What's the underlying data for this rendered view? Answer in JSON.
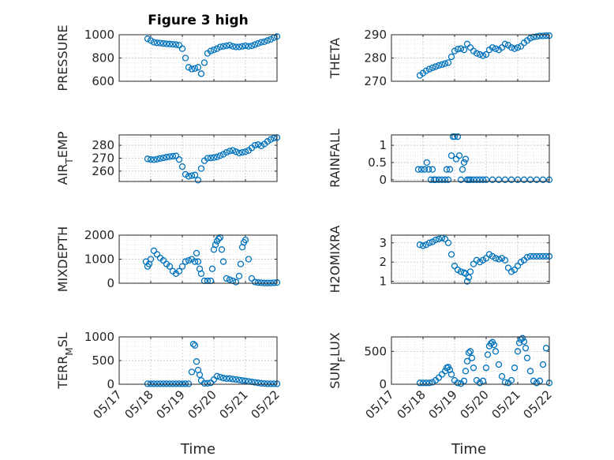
{
  "figure": {
    "title": "Figure 3 high",
    "xlabel": "Time",
    "marker_color": "#0072BD"
  },
  "chart_data": [
    {
      "type": "scatter",
      "ylabel": "PRESSURE",
      "ylim": [
        600,
        1000
      ],
      "yticks": [
        600,
        800,
        1000
      ],
      "xticks": [
        "05/17",
        "05/18",
        "05/19",
        "05/20",
        "05/21",
        "05/22"
      ],
      "xlim": [
        0,
        5
      ],
      "grid": "on",
      "series": [
        {
          "x": [
            0.9,
            1.0,
            1.1,
            1.2,
            1.3,
            1.4,
            1.5,
            1.6,
            1.7,
            1.8,
            1.9,
            2.0,
            2.1,
            2.2,
            2.3,
            2.4,
            2.5,
            2.6,
            2.7,
            2.8,
            2.9,
            3.0,
            3.1,
            3.2,
            3.3,
            3.4,
            3.5,
            3.6,
            3.7,
            3.8,
            3.9,
            4.0,
            4.1,
            4.2,
            4.3,
            4.4,
            4.5,
            4.6,
            4.7,
            4.8,
            4.9,
            5.0
          ],
          "y": [
            965,
            950,
            935,
            930,
            928,
            925,
            922,
            920,
            918,
            915,
            910,
            880,
            800,
            720,
            705,
            710,
            720,
            665,
            760,
            840,
            860,
            870,
            880,
            895,
            900,
            905,
            910,
            900,
            895,
            895,
            900,
            905,
            900,
            905,
            915,
            925,
            935,
            940,
            950,
            960,
            975,
            985
          ]
        }
      ]
    },
    {
      "type": "scatter",
      "ylabel": "THETA",
      "ylim": [
        270,
        290
      ],
      "yticks": [
        270,
        280,
        290
      ],
      "xticks": [
        "05/17",
        "05/18",
        "05/19",
        "05/20",
        "05/21",
        "05/22"
      ],
      "xlim": [
        0,
        5
      ],
      "grid": "on",
      "series": [
        {
          "x": [
            0.9,
            1.0,
            1.1,
            1.2,
            1.3,
            1.4,
            1.5,
            1.6,
            1.7,
            1.8,
            1.9,
            2.0,
            2.1,
            2.2,
            2.3,
            2.4,
            2.5,
            2.6,
            2.7,
            2.8,
            2.9,
            3.0,
            3.1,
            3.2,
            3.3,
            3.4,
            3.5,
            3.6,
            3.7,
            3.8,
            3.9,
            4.0,
            4.1,
            4.2,
            4.3,
            4.4,
            4.5,
            4.6,
            4.7,
            4.8,
            4.9,
            5.0
          ],
          "y": [
            272.5,
            273.5,
            274.5,
            275.2,
            275.8,
            276.3,
            276.8,
            277.2,
            277.6,
            278.0,
            280.5,
            283.0,
            283.8,
            284.0,
            283.5,
            286.0,
            284.5,
            283.0,
            282.0,
            281.5,
            281.0,
            281.5,
            283.5,
            284.5,
            284.0,
            283.5,
            284.5,
            286.0,
            285.5,
            284.5,
            284.0,
            284.5,
            285.0,
            286.5,
            287.5,
            288.5,
            289.0,
            289.2,
            289.5,
            289.5,
            289.6,
            289.6
          ]
        }
      ]
    },
    {
      "type": "scatter",
      "ylabel": "AIR_TEMP",
      "ylim": [
        252,
        288
      ],
      "yticks": [
        260,
        270,
        280
      ],
      "xticks": [
        "05/17",
        "05/18",
        "05/19",
        "05/20",
        "05/21",
        "05/22"
      ],
      "xlim": [
        0,
        5
      ],
      "grid": "on",
      "series": [
        {
          "x": [
            0.9,
            1.0,
            1.1,
            1.2,
            1.3,
            1.4,
            1.5,
            1.6,
            1.7,
            1.8,
            1.9,
            2.0,
            2.1,
            2.2,
            2.3,
            2.4,
            2.5,
            2.6,
            2.7,
            2.8,
            2.9,
            3.0,
            3.1,
            3.2,
            3.3,
            3.4,
            3.5,
            3.6,
            3.7,
            3.8,
            3.9,
            4.0,
            4.1,
            4.2,
            4.3,
            4.4,
            4.5,
            4.6,
            4.7,
            4.8,
            4.9,
            5.0
          ],
          "y": [
            269.5,
            269.0,
            268.8,
            269.2,
            269.8,
            270.3,
            270.8,
            271.2,
            271.5,
            271.8,
            269.0,
            263.5,
            257.5,
            256.0,
            256.5,
            257.0,
            253.0,
            262.0,
            268.0,
            270.0,
            270.2,
            270.5,
            271.0,
            272.0,
            273.0,
            274.5,
            275.5,
            276.0,
            275.0,
            274.0,
            274.5,
            275.0,
            276.0,
            278.0,
            280.0,
            280.5,
            279.5,
            281.0,
            283.0,
            284.5,
            285.5,
            286.0
          ]
        }
      ]
    },
    {
      "type": "scatter",
      "ylabel": "RAINFALL",
      "ylim": [
        -0.05,
        1.3
      ],
      "yticks": [
        0,
        0.5,
        1
      ],
      "ytick_labels": [
        "0",
        "0.5",
        "1"
      ],
      "xticks": [
        "05/17",
        "05/18",
        "05/19",
        "05/20",
        "05/21",
        "05/22"
      ],
      "xlim": [
        0,
        5
      ],
      "grid": "on",
      "series": [
        {
          "x": [
            0.85,
            0.95,
            1.05,
            1.12,
            1.18,
            1.25,
            1.3,
            1.35,
            1.4,
            1.5,
            1.6,
            1.7,
            1.75,
            1.8,
            1.85,
            1.9,
            1.95,
            2.0,
            2.05,
            2.1,
            2.15,
            2.2,
            2.25,
            2.3,
            2.35,
            2.4,
            2.45,
            2.5,
            2.6,
            2.7,
            2.8,
            2.9,
            3.0,
            3.2,
            3.4,
            3.6,
            3.8,
            4.0,
            4.2,
            4.4,
            4.6,
            4.8,
            5.0
          ],
          "y": [
            0.3,
            0.3,
            0.3,
            0.5,
            0.3,
            0.0,
            0.3,
            0.0,
            0.0,
            0.0,
            0.0,
            0.0,
            0.3,
            0.0,
            0.3,
            0.7,
            1.25,
            1.25,
            0.6,
            1.25,
            0.7,
            0.0,
            0.3,
            0.5,
            0.6,
            0.0,
            0.0,
            0.0,
            0.0,
            0.0,
            0.0,
            0.0,
            0.0,
            0.0,
            0.0,
            0.0,
            0.0,
            0.0,
            0.0,
            0.0,
            0.0,
            0.0,
            0.0
          ]
        }
      ]
    },
    {
      "type": "scatter",
      "ylabel": "MIXDEPTH",
      "ylim": [
        0,
        2000
      ],
      "yticks": [
        0,
        1000,
        2000
      ],
      "xticks": [
        "05/17",
        "05/18",
        "05/19",
        "05/20",
        "05/21",
        "05/22"
      ],
      "xlim": [
        0,
        5
      ],
      "grid": "on",
      "series": [
        {
          "x": [
            0.85,
            0.9,
            0.95,
            1.0,
            1.1,
            1.2,
            1.3,
            1.4,
            1.5,
            1.6,
            1.7,
            1.8,
            1.9,
            2.0,
            2.1,
            2.2,
            2.3,
            2.4,
            2.45,
            2.5,
            2.55,
            2.6,
            2.7,
            2.8,
            2.9,
            2.95,
            3.0,
            3.05,
            3.1,
            3.15,
            3.2,
            3.25,
            3.3,
            3.4,
            3.5,
            3.6,
            3.7,
            3.8,
            3.85,
            3.9,
            3.95,
            4.0,
            4.1,
            4.2,
            4.3,
            4.4,
            4.5,
            4.6,
            4.7,
            4.8,
            4.9,
            5.0
          ],
          "y": [
            900,
            700,
            800,
            1000,
            1350,
            1200,
            1050,
            950,
            800,
            700,
            500,
            400,
            500,
            700,
            900,
            950,
            1000,
            900,
            1250,
            900,
            600,
            400,
            100,
            100,
            100,
            600,
            1400,
            1600,
            1750,
            1850,
            1900,
            1400,
            900,
            200,
            150,
            100,
            50,
            300,
            800,
            1500,
            1700,
            1800,
            1000,
            200,
            50,
            30,
            20,
            10,
            10,
            10,
            20,
            30
          ]
        }
      ]
    },
    {
      "type": "scatter",
      "ylabel": "H2OMIXRA",
      "ylim": [
        0.9,
        3.4
      ],
      "yticks": [
        1,
        2,
        3
      ],
      "xticks": [
        "05/17",
        "05/18",
        "05/19",
        "05/20",
        "05/21",
        "05/22"
      ],
      "xlim": [
        0,
        5
      ],
      "grid": "on",
      "series": [
        {
          "x": [
            0.9,
            1.0,
            1.1,
            1.2,
            1.3,
            1.4,
            1.5,
            1.6,
            1.7,
            1.8,
            1.9,
            2.0,
            2.1,
            2.2,
            2.3,
            2.35,
            2.4,
            2.45,
            2.5,
            2.6,
            2.7,
            2.8,
            2.9,
            3.0,
            3.1,
            3.2,
            3.3,
            3.4,
            3.5,
            3.6,
            3.7,
            3.8,
            3.9,
            4.0,
            4.1,
            4.2,
            4.3,
            4.4,
            4.5,
            4.6,
            4.7,
            4.8,
            4.9,
            5.0
          ],
          "y": [
            2.9,
            2.85,
            2.9,
            3.0,
            3.05,
            3.15,
            3.2,
            3.25,
            3.2,
            3.0,
            2.4,
            1.8,
            1.6,
            1.5,
            1.45,
            1.4,
            1.0,
            1.2,
            1.5,
            1.9,
            2.1,
            2.0,
            2.1,
            2.2,
            2.4,
            2.3,
            2.2,
            2.15,
            2.2,
            2.1,
            1.7,
            1.5,
            1.6,
            1.8,
            2.0,
            2.1,
            2.25,
            2.3,
            2.3,
            2.3,
            2.3,
            2.3,
            2.3,
            2.3
          ]
        }
      ]
    },
    {
      "type": "scatter",
      "ylabel": "TERR_MSL",
      "ylim": [
        0,
        1000
      ],
      "yticks": [
        0,
        500,
        1000
      ],
      "xticks": [
        "05/17",
        "05/18",
        "05/19",
        "05/20",
        "05/21",
        "05/22"
      ],
      "xlim": [
        0,
        5
      ],
      "grid": "on",
      "series": [
        {
          "x": [
            0.9,
            1.0,
            1.1,
            1.2,
            1.3,
            1.4,
            1.5,
            1.6,
            1.7,
            1.8,
            1.9,
            2.0,
            2.1,
            2.2,
            2.3,
            2.35,
            2.4,
            2.45,
            2.5,
            2.55,
            2.6,
            2.7,
            2.8,
            2.9,
            3.0,
            3.1,
            3.2,
            3.3,
            3.4,
            3.5,
            3.6,
            3.7,
            3.8,
            3.9,
            4.0,
            4.1,
            4.2,
            4.3,
            4.4,
            4.5,
            4.6,
            4.7,
            4.8,
            4.9,
            5.0
          ],
          "y": [
            10,
            10,
            10,
            10,
            10,
            10,
            10,
            10,
            10,
            10,
            10,
            10,
            10,
            10,
            260,
            850,
            820,
            480,
            300,
            200,
            80,
            20,
            20,
            30,
            100,
            170,
            150,
            130,
            120,
            120,
            110,
            100,
            90,
            80,
            70,
            60,
            50,
            40,
            30,
            20,
            15,
            10,
            10,
            10,
            10
          ]
        }
      ]
    },
    {
      "type": "scatter",
      "ylabel": "SUN_FLUX",
      "ylim": [
        0,
        720
      ],
      "yticks": [
        0,
        500
      ],
      "xticks": [
        "05/17",
        "05/18",
        "05/19",
        "05/20",
        "05/21",
        "05/22"
      ],
      "xlim": [
        0,
        5
      ],
      "grid": "on",
      "series": [
        {
          "x": [
            0.9,
            1.0,
            1.1,
            1.2,
            1.3,
            1.4,
            1.5,
            1.6,
            1.7,
            1.75,
            1.8,
            1.85,
            1.9,
            2.0,
            2.1,
            2.2,
            2.3,
            2.35,
            2.4,
            2.45,
            2.5,
            2.55,
            2.6,
            2.7,
            2.8,
            2.9,
            3.0,
            3.05,
            3.1,
            3.15,
            3.2,
            3.25,
            3.3,
            3.4,
            3.5,
            3.6,
            3.7,
            3.8,
            3.9,
            4.0,
            4.05,
            4.1,
            4.15,
            4.2,
            4.25,
            4.3,
            4.4,
            4.5,
            4.6,
            4.7,
            4.8,
            4.9,
            5.0
          ],
          "y": [
            20,
            20,
            20,
            20,
            30,
            60,
            100,
            150,
            200,
            250,
            260,
            220,
            150,
            60,
            20,
            10,
            50,
            200,
            350,
            480,
            500,
            400,
            250,
            60,
            20,
            50,
            250,
            450,
            580,
            620,
            640,
            600,
            500,
            300,
            120,
            30,
            20,
            60,
            250,
            500,
            630,
            680,
            700,
            650,
            550,
            400,
            200,
            50,
            20,
            50,
            300,
            550,
            20
          ]
        }
      ]
    }
  ]
}
